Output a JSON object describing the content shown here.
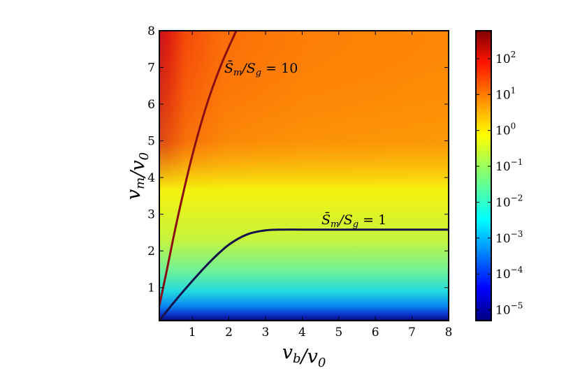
{
  "chart_data": {
    "type": "heatmap",
    "title": "",
    "xlabel": "v_b/v_0",
    "ylabel": "v_m/v_0",
    "xlim": [
      0.1,
      8
    ],
    "ylim": [
      0.1,
      8
    ],
    "x_ticks": [
      1,
      2,
      3,
      4,
      5,
      6,
      7,
      8
    ],
    "y_ticks": [
      1,
      2,
      3,
      4,
      5,
      6,
      7,
      8
    ],
    "colorbar": {
      "scale": "log",
      "colormap": "jet",
      "range": [
        5e-06,
        600
      ],
      "ticks": [
        {
          "base": "10",
          "exp": "2",
          "value": 100
        },
        {
          "base": "10",
          "exp": "1",
          "value": 10
        },
        {
          "base": "10",
          "exp": "0",
          "value": 1
        },
        {
          "base": "10",
          "exp": "−1",
          "value": 0.1
        },
        {
          "base": "10",
          "exp": "−2",
          "value": 0.01
        },
        {
          "base": "10",
          "exp": "−3",
          "value": 0.001
        },
        {
          "base": "10",
          "exp": "−4",
          "value": 0.0001
        },
        {
          "base": "10",
          "exp": "−5",
          "value": 1e-05
        }
      ]
    },
    "contours": [
      {
        "label_main": "S̄",
        "label_sub1": "m",
        "label_mid": "/S",
        "label_sub2": "g",
        "label_rest": " = 10",
        "level": 10,
        "color": "#8b0f12",
        "x": [
          0.1,
          0.3,
          0.6,
          1.0,
          1.4,
          1.8,
          2.2
        ],
        "y": [
          0.5,
          1.45,
          2.9,
          4.6,
          6.0,
          7.1,
          8.0
        ]
      },
      {
        "label_main": "S̄",
        "label_sub1": "m",
        "label_mid": "/S",
        "label_sub2": "g",
        "label_rest": " = 1",
        "level": 1,
        "color": "#14144a",
        "x": [
          0.1,
          0.5,
          1.0,
          1.5,
          2.0,
          2.5,
          3.0,
          3.5,
          4.0,
          5.0,
          6.0,
          7.0,
          8.0
        ],
        "y": [
          0.1,
          0.6,
          1.18,
          1.72,
          2.17,
          2.45,
          2.56,
          2.58,
          2.58,
          2.58,
          2.58,
          2.58,
          2.58
        ]
      }
    ]
  }
}
